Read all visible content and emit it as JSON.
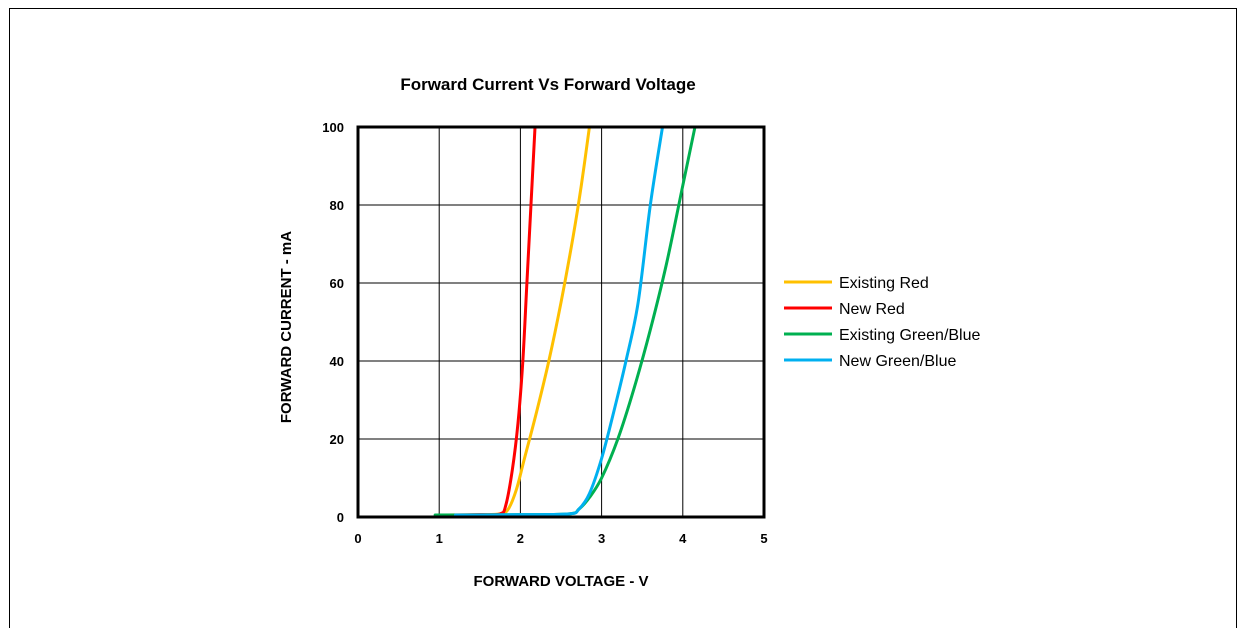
{
  "chart_data": {
    "type": "line",
    "title": "Forward Current Vs Forward Voltage",
    "xlabel": "FORWARD VOLTAGE - V",
    "ylabel": "FORWARD CURRENT - mA",
    "xlim": [
      0,
      5
    ],
    "ylim": [
      0,
      100
    ],
    "xticks": [
      "0",
      "1",
      "2",
      "3",
      "4",
      "5"
    ],
    "yticks": [
      "0",
      "20",
      "40",
      "60",
      "80",
      "100"
    ],
    "grid": true,
    "legend_position": "right",
    "series": [
      {
        "name": "Existing Red",
        "color": "#FFC000",
        "points": [
          [
            1.1,
            0.5
          ],
          [
            1.5,
            0.6
          ],
          [
            1.75,
            0.8
          ],
          [
            1.85,
            2
          ],
          [
            1.95,
            7
          ],
          [
            2.05,
            15
          ],
          [
            2.2,
            27
          ],
          [
            2.35,
            40
          ],
          [
            2.5,
            55
          ],
          [
            2.65,
            72
          ],
          [
            2.75,
            85
          ],
          [
            2.85,
            100
          ]
        ]
      },
      {
        "name": "New Red",
        "color": "#FF0000",
        "points": [
          [
            1.15,
            0.5
          ],
          [
            1.5,
            0.6
          ],
          [
            1.75,
            0.8
          ],
          [
            1.82,
            3
          ],
          [
            1.9,
            12
          ],
          [
            1.97,
            24
          ],
          [
            2.03,
            40
          ],
          [
            2.08,
            60
          ],
          [
            2.13,
            80
          ],
          [
            2.18,
            100
          ]
        ]
      },
      {
        "name": "Existing Green/Blue",
        "color": "#00B050",
        "points": [
          [
            0.95,
            0.5
          ],
          [
            2.0,
            0.6
          ],
          [
            2.6,
            0.8
          ],
          [
            2.72,
            2
          ],
          [
            2.85,
            5
          ],
          [
            3.0,
            10
          ],
          [
            3.2,
            20
          ],
          [
            3.4,
            33
          ],
          [
            3.6,
            48
          ],
          [
            3.8,
            65
          ],
          [
            4.0,
            85
          ],
          [
            4.15,
            100
          ]
        ]
      },
      {
        "name": "New Green/Blue",
        "color": "#00B0F0",
        "points": [
          [
            1.2,
            0.5
          ],
          [
            2.0,
            0.6
          ],
          [
            2.6,
            0.8
          ],
          [
            2.72,
            2
          ],
          [
            2.85,
            6
          ],
          [
            3.0,
            15
          ],
          [
            3.15,
            27
          ],
          [
            3.3,
            40
          ],
          [
            3.45,
            55
          ],
          [
            3.6,
            80
          ],
          [
            3.75,
            100
          ]
        ]
      }
    ]
  }
}
